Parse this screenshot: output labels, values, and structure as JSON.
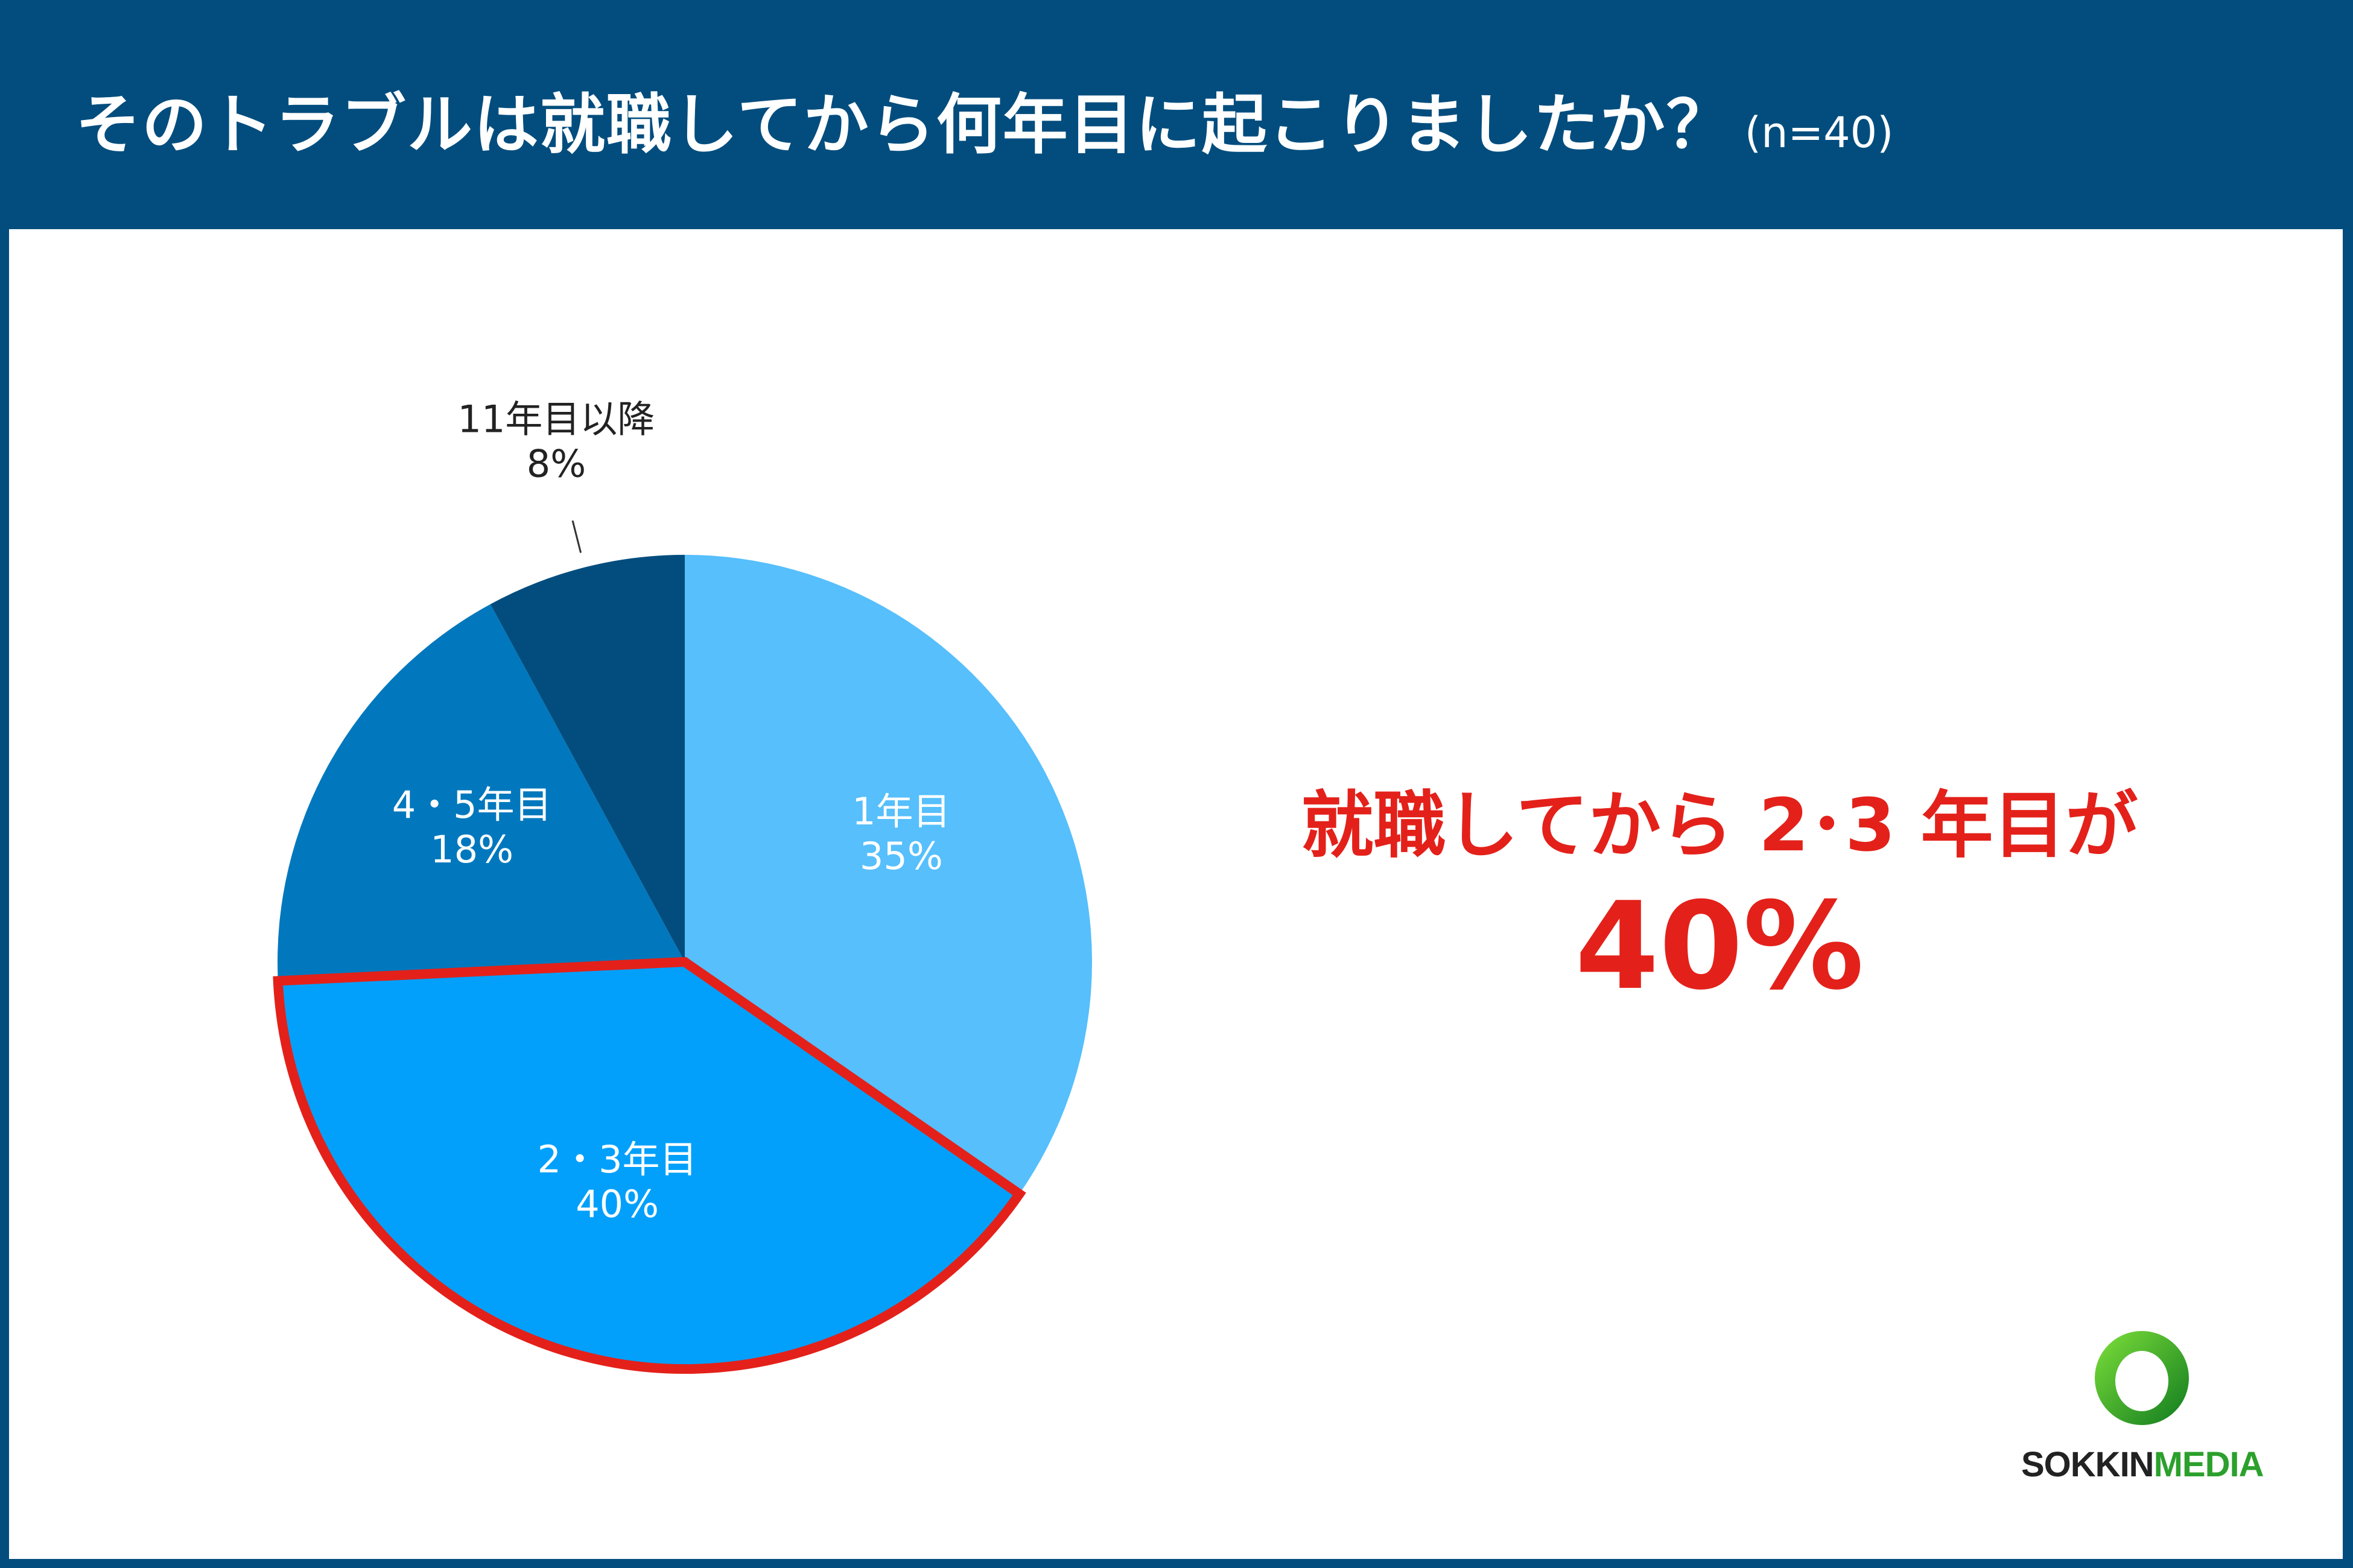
{
  "header": {
    "title": "そのトラブルは就職してから何年目に起こりましたか？",
    "sample": "(n=40)"
  },
  "chart_data": {
    "type": "pie",
    "slices": [
      {
        "label": "1年目",
        "value": 35,
        "value_label": "35%",
        "color": "#56bffc"
      },
      {
        "label": "2・3年目",
        "value": 40,
        "value_label": "40%",
        "color": "#02a0fb",
        "highlighted": true
      },
      {
        "label": "4・5年目",
        "value": 18,
        "value_label": "18%",
        "color": "#0178bd"
      },
      {
        "label": "11年目以降",
        "value": 8,
        "value_label": "8%",
        "color": "#024d7e"
      }
    ],
    "highlight_border_color": "#e3211a",
    "label_color_inside": "#ffffff",
    "label_color_outside": "#222222"
  },
  "callout": {
    "line": "就職してから 2･3 年目が",
    "value": "40%",
    "color": "#e3211a"
  },
  "logo": {
    "part_a": "SOKKIN",
    "part_b": "MEDIA"
  }
}
